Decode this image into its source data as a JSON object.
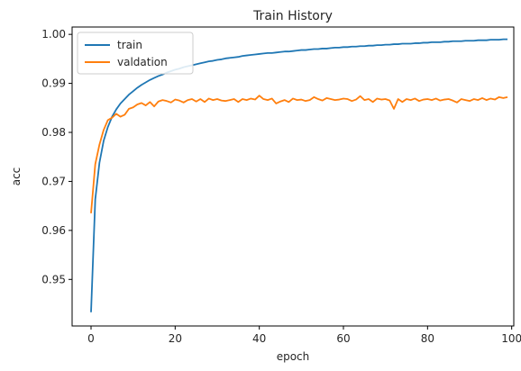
{
  "chart_data": {
    "type": "line",
    "title": "Train History",
    "xlabel": "epoch",
    "ylabel": "acc",
    "xlim": [
      -4.5,
      100.5
    ],
    "ylim": [
      0.9405,
      1.0015
    ],
    "xticks": [
      0,
      20,
      40,
      60,
      80,
      100
    ],
    "xtick_labels": [
      "0",
      "20",
      "40",
      "60",
      "80",
      "100"
    ],
    "yticks": [
      0.95,
      0.96,
      0.97,
      0.98,
      0.99,
      1.0
    ],
    "ytick_labels": [
      "0.95",
      "0.96",
      "0.97",
      "0.98",
      "0.99",
      "1.00"
    ],
    "grid": false,
    "legend_position": "top-left",
    "x": [
      0,
      1,
      2,
      3,
      4,
      5,
      6,
      7,
      8,
      9,
      10,
      11,
      12,
      13,
      14,
      15,
      16,
      17,
      18,
      19,
      20,
      21,
      22,
      23,
      24,
      25,
      26,
      27,
      28,
      29,
      30,
      31,
      32,
      33,
      34,
      35,
      36,
      37,
      38,
      39,
      40,
      41,
      42,
      43,
      44,
      45,
      46,
      47,
      48,
      49,
      50,
      51,
      52,
      53,
      54,
      55,
      56,
      57,
      58,
      59,
      60,
      61,
      62,
      63,
      64,
      65,
      66,
      67,
      68,
      69,
      70,
      71,
      72,
      73,
      74,
      75,
      76,
      77,
      78,
      79,
      80,
      81,
      82,
      83,
      84,
      85,
      86,
      87,
      88,
      89,
      90,
      91,
      92,
      93,
      94,
      95,
      96,
      97,
      98,
      99
    ],
    "series": [
      {
        "name": "train",
        "color": "#1f77b4",
        "values": [
          0.9433,
          0.9663,
          0.9738,
          0.9783,
          0.9811,
          0.9832,
          0.9847,
          0.9859,
          0.9868,
          0.9877,
          0.9884,
          0.9891,
          0.9897,
          0.9902,
          0.9907,
          0.9911,
          0.9915,
          0.9918,
          0.9922,
          0.9925,
          0.9928,
          0.993,
          0.9933,
          0.9935,
          0.9937,
          0.9939,
          0.9941,
          0.9943,
          0.9945,
          0.9946,
          0.9948,
          0.9949,
          0.9951,
          0.9952,
          0.9953,
          0.9954,
          0.9956,
          0.9957,
          0.9958,
          0.9959,
          0.996,
          0.9961,
          0.9962,
          0.9962,
          0.9963,
          0.9964,
          0.9965,
          0.9965,
          0.9966,
          0.9967,
          0.9968,
          0.9968,
          0.9969,
          0.997,
          0.997,
          0.9971,
          0.9971,
          0.9972,
          0.9973,
          0.9973,
          0.9974,
          0.9974,
          0.9975,
          0.9975,
          0.9976,
          0.9976,
          0.9977,
          0.9977,
          0.9978,
          0.9978,
          0.9979,
          0.9979,
          0.998,
          0.998,
          0.9981,
          0.9981,
          0.9981,
          0.9982,
          0.9982,
          0.9983,
          0.9983,
          0.9984,
          0.9984,
          0.9984,
          0.9985,
          0.9985,
          0.9986,
          0.9986,
          0.9986,
          0.9987,
          0.9987,
          0.9987,
          0.9988,
          0.9988,
          0.9988,
          0.9989,
          0.9989,
          0.9989,
          0.999,
          0.999
        ]
      },
      {
        "name": "valdation",
        "color": "#ff7f0e",
        "values": [
          0.9635,
          0.9735,
          0.9775,
          0.9805,
          0.9825,
          0.983,
          0.9838,
          0.9832,
          0.9836,
          0.9848,
          0.9851,
          0.9857,
          0.986,
          0.9855,
          0.9862,
          0.9853,
          0.9863,
          0.9866,
          0.9864,
          0.9861,
          0.9867,
          0.9865,
          0.9861,
          0.9866,
          0.9868,
          0.9863,
          0.9868,
          0.9862,
          0.9869,
          0.9866,
          0.9868,
          0.9865,
          0.9864,
          0.9866,
          0.9868,
          0.9862,
          0.9868,
          0.9866,
          0.9869,
          0.9867,
          0.9875,
          0.9868,
          0.9866,
          0.9869,
          0.9859,
          0.9863,
          0.9866,
          0.9862,
          0.9869,
          0.9866,
          0.9867,
          0.9864,
          0.9866,
          0.9872,
          0.9868,
          0.9865,
          0.987,
          0.9868,
          0.9866,
          0.9867,
          0.9869,
          0.9868,
          0.9864,
          0.9867,
          0.9874,
          0.9866,
          0.9868,
          0.9862,
          0.9869,
          0.9867,
          0.9868,
          0.9865,
          0.9848,
          0.9868,
          0.9862,
          0.9868,
          0.9866,
          0.9869,
          0.9864,
          0.9867,
          0.9868,
          0.9866,
          0.9869,
          0.9865,
          0.9867,
          0.9868,
          0.9865,
          0.9861,
          0.9868,
          0.9866,
          0.9864,
          0.9868,
          0.9866,
          0.987,
          0.9866,
          0.9869,
          0.9867,
          0.9872,
          0.987,
          0.9872
        ]
      }
    ]
  }
}
